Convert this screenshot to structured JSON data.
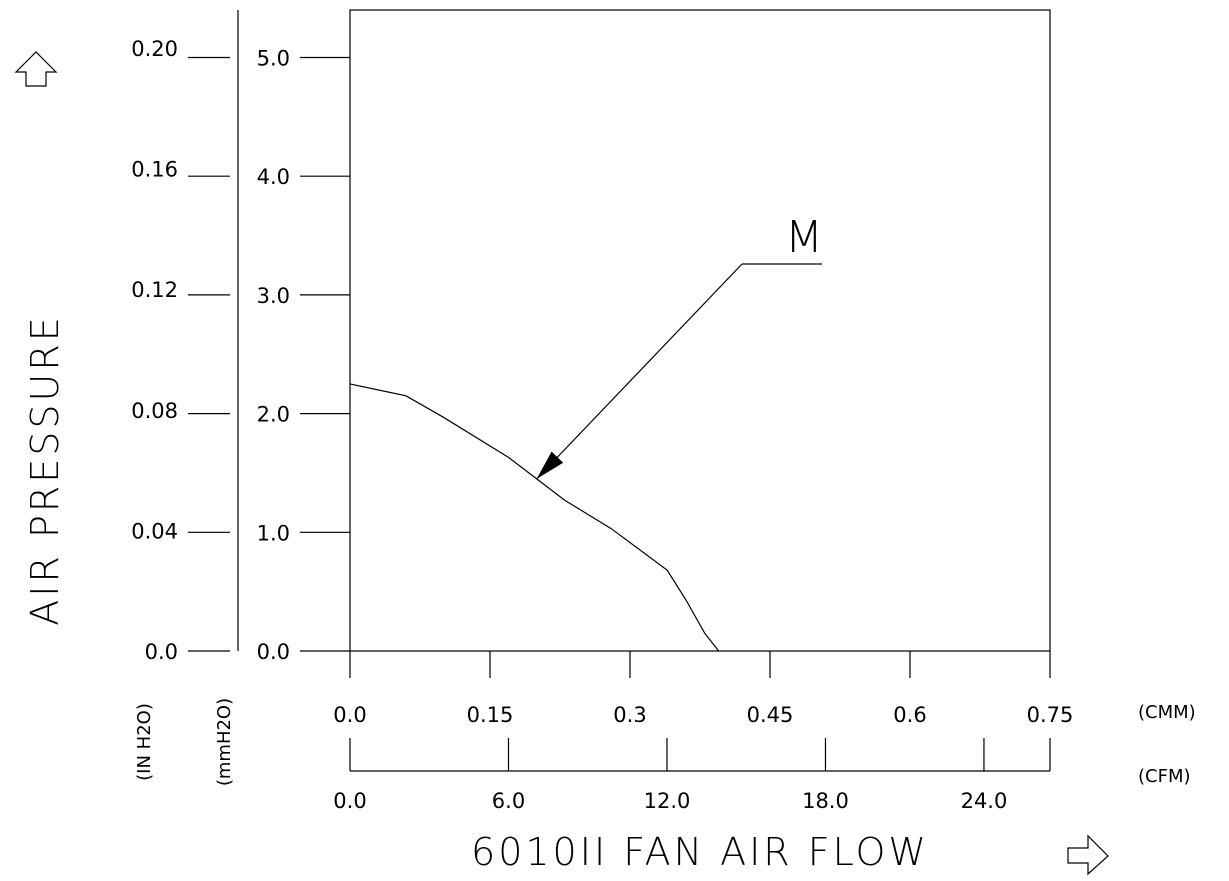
{
  "chart_data": {
    "type": "line",
    "title": "",
    "xlabel": "6010II FAN AIR FLOW",
    "ylabel": "AIR PRESSURE",
    "x_axes": [
      {
        "unit": "(CMM)",
        "range": [
          0,
          0.75
        ],
        "ticks": [
          "0.0",
          "0.15",
          "0.3",
          "0.45",
          "0.6",
          "0.75"
        ]
      },
      {
        "unit": "(CFM)",
        "range": [
          0,
          26.5
        ],
        "ticks": [
          "0.0",
          "6.0",
          "12.0",
          "18.0",
          "24.0"
        ]
      }
    ],
    "y_axes": [
      {
        "unit": "(IN H2O)",
        "range": [
          0,
          0.2126
        ],
        "ticks": [
          "0.0",
          "0.04",
          "0.08",
          "0.12",
          "0.16",
          "0.20"
        ]
      },
      {
        "unit": "(mmH2O)",
        "range": [
          0,
          5.4
        ],
        "ticks": [
          "0.0",
          "1.0",
          "2.0",
          "3.0",
          "4.0",
          "5.0"
        ]
      }
    ],
    "grid": false,
    "series": [
      {
        "name": "M",
        "x_unit": "CMM",
        "y_unit": "mmH2O",
        "x": [
          0.0,
          0.06,
          0.1,
          0.17,
          0.2,
          0.23,
          0.28,
          0.34,
          0.36,
          0.38,
          0.395
        ],
        "y": [
          2.25,
          2.15,
          1.97,
          1.63,
          1.45,
          1.27,
          1.03,
          0.68,
          0.43,
          0.15,
          0.0
        ]
      }
    ],
    "annotations": [
      {
        "text": "M"
      }
    ]
  }
}
